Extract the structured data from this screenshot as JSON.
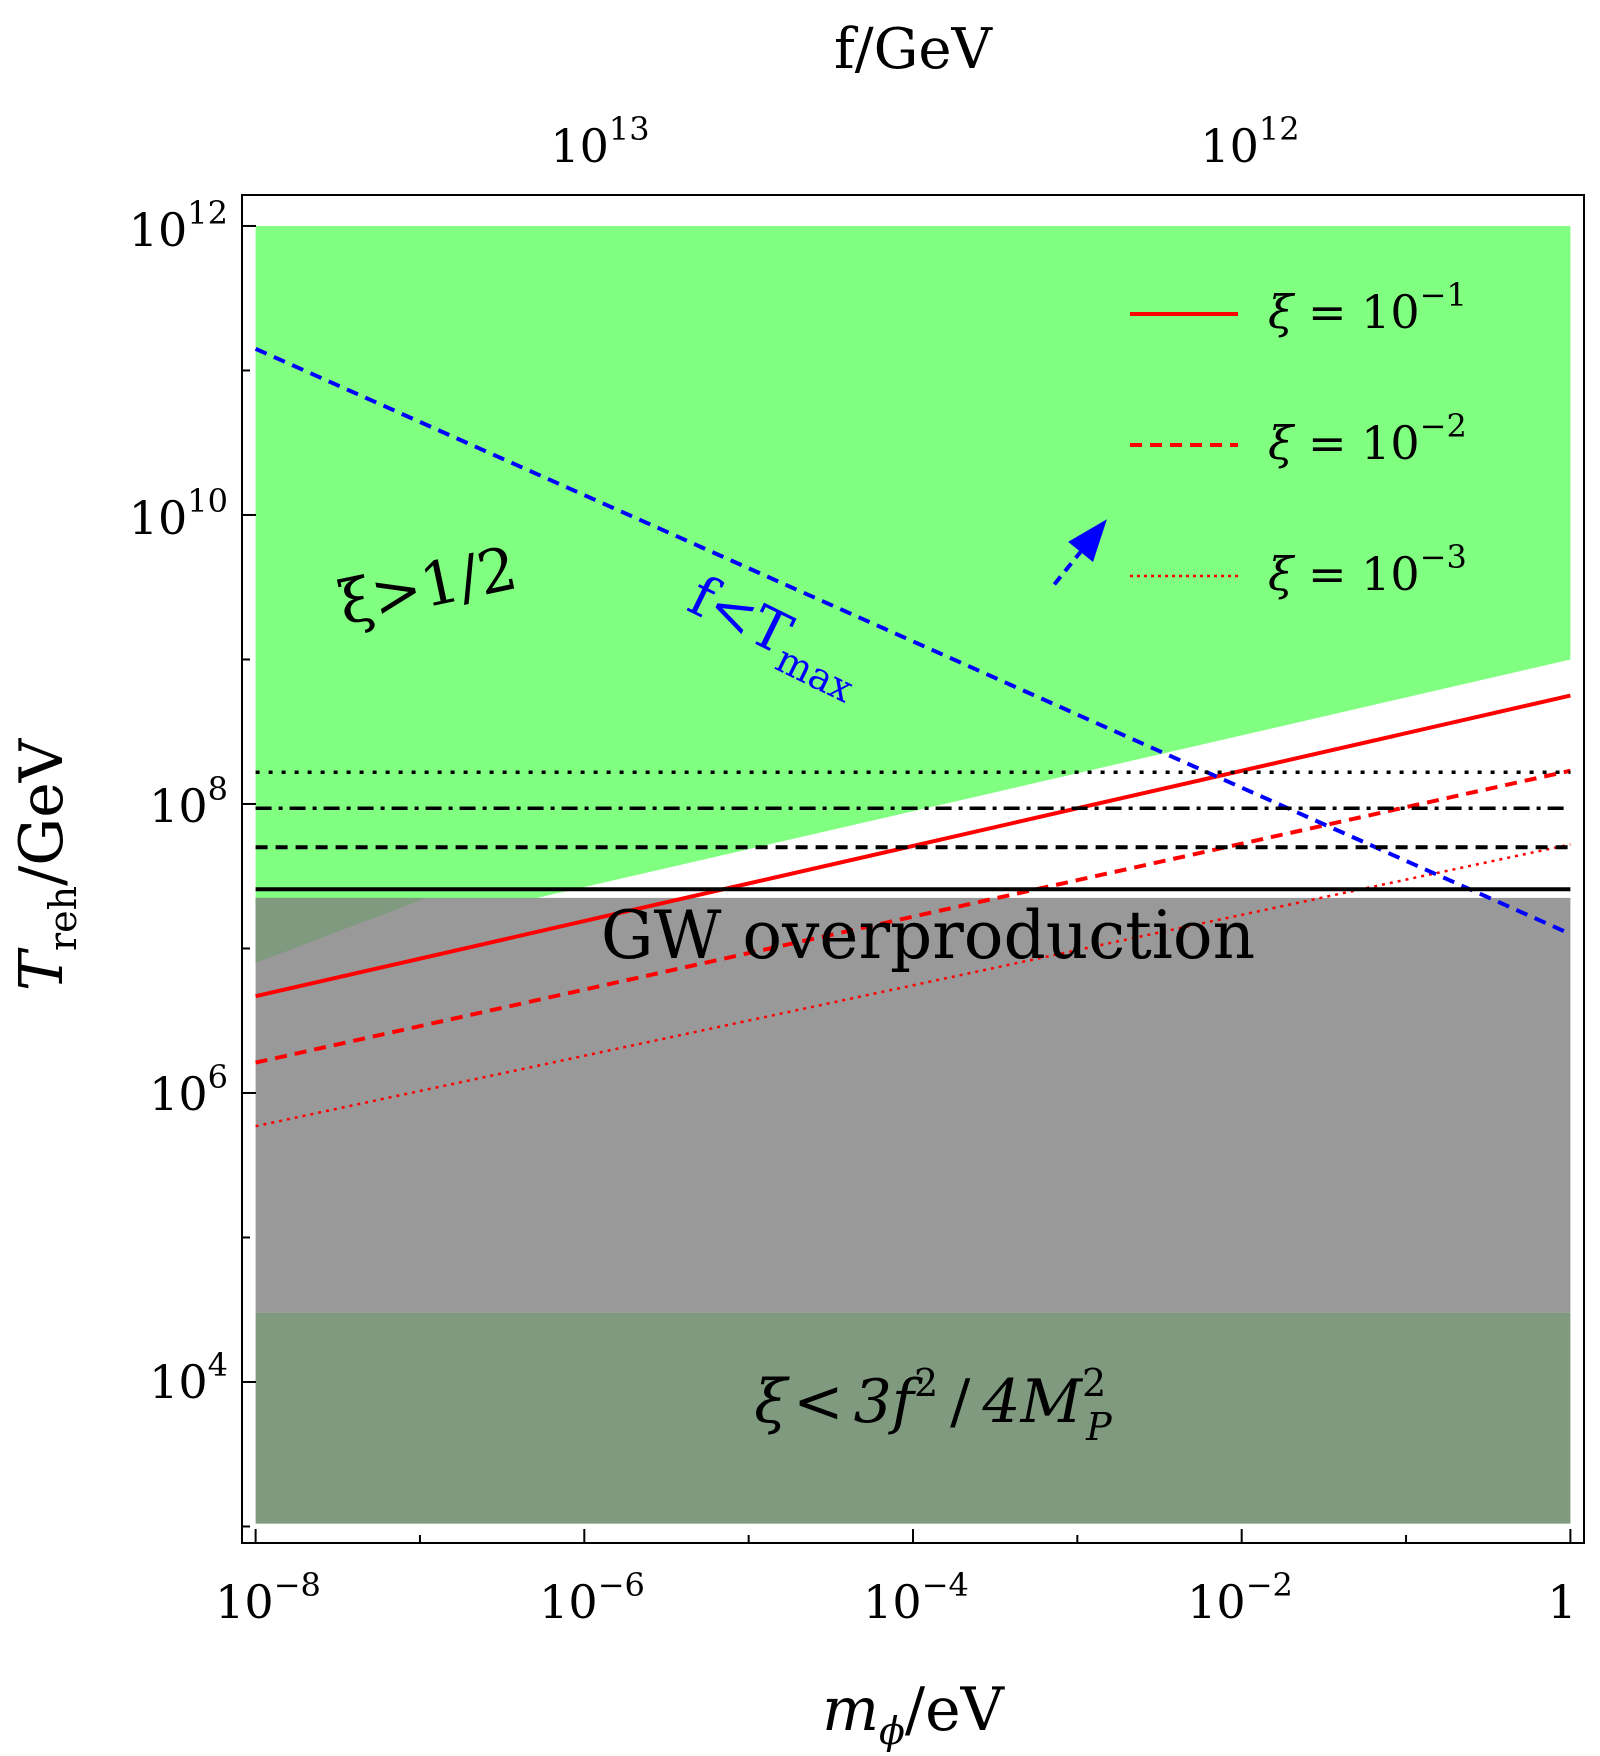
{
  "chart_data": {
    "type": "line",
    "x_axis": {
      "label_main": "m",
      "label_sub": "ϕ",
      "label_tail": "/eV",
      "scale": "log10",
      "range_log": [
        -8.0828,
        0.0828
      ],
      "ticks": [
        {
          "value_log": -8,
          "base": "10",
          "exp": "−8"
        },
        {
          "value_log": -6,
          "base": "10",
          "exp": "−6"
        },
        {
          "value_log": -4,
          "base": "10",
          "exp": "−4"
        },
        {
          "value_log": -2,
          "base": "10",
          "exp": "−2"
        },
        {
          "value_log": 0,
          "base": "1",
          "exp": ""
        }
      ]
    },
    "y_axis": {
      "label_main": "T",
      "label_sub": "reh",
      "label_tail": "/GeV",
      "scale": "log10",
      "range_log": [
        2.8857,
        12.2143
      ],
      "ticks": [
        {
          "value_log": 4,
          "base": "10",
          "exp": "4"
        },
        {
          "value_log": 6,
          "base": "10",
          "exp": "6"
        },
        {
          "value_log": 8,
          "base": "10",
          "exp": "8"
        },
        {
          "value_log": 10,
          "base": "10",
          "exp": "10"
        },
        {
          "value_log": 12,
          "base": "10",
          "exp": "12"
        }
      ]
    },
    "top_axis": {
      "label": "f/GeV",
      "ticks": [
        {
          "at_x_log": -6,
          "base": "10",
          "exp": "13"
        },
        {
          "at_x_log": -2,
          "base": "10",
          "exp": "12"
        }
      ]
    },
    "regions": [
      {
        "name": "xi-gt-half",
        "color": "#80ff80",
        "polygon_log": [
          [
            -8,
            12.0
          ],
          [
            0,
            12.0
          ],
          [
            0,
            9.0
          ],
          [
            -8,
            6.9
          ]
        ]
      },
      {
        "name": "gw-overproduction",
        "color": "#999999",
        "polygon_log": [
          [
            -8,
            7.35
          ],
          [
            0,
            7.35
          ],
          [
            0,
            4.48
          ],
          [
            -8,
            4.48
          ]
        ]
      },
      {
        "name": "overlap",
        "color": "#7f9a7f",
        "polygon_log": [
          [
            -8,
            6.9
          ],
          [
            -6.96,
            7.35
          ],
          [
            -8,
            7.35
          ]
        ]
      },
      {
        "name": "xi-lt-3f2",
        "color": "#7f9a7f",
        "polygon_log": [
          [
            -8,
            4.48
          ],
          [
            0,
            4.48
          ],
          [
            0,
            3.02
          ],
          [
            -8,
            3.02
          ]
        ]
      }
    ],
    "series": [
      {
        "name": "ξ = 10^-1",
        "color": "#ff0000",
        "dash": "solid",
        "width": 4,
        "x_log": [
          -8,
          0
        ],
        "y_log": [
          6.67,
          8.75
        ]
      },
      {
        "name": "ξ = 10^-2",
        "color": "#ff0000",
        "dash": "dashed",
        "width": 4,
        "x_log": [
          -8,
          0
        ],
        "y_log": [
          6.21,
          8.23
        ]
      },
      {
        "name": "ξ = 10^-3",
        "color": "#ff0000",
        "dash": "dotted",
        "width": 2.5,
        "x_log": [
          -8,
          0
        ],
        "y_log": [
          5.77,
          7.72
        ]
      },
      {
        "name": "f < T_max",
        "color": "#0000ff",
        "dash": "dashed",
        "width": 4,
        "x_log": [
          -8,
          0
        ],
        "y_log": [
          11.15,
          7.1
        ]
      },
      {
        "name": "black-solid",
        "color": "#000000",
        "dash": "solid",
        "width": 4,
        "x_log": [
          -8,
          0
        ],
        "y_log": [
          7.41,
          7.41
        ]
      },
      {
        "name": "black-dashed",
        "color": "#000000",
        "dash": "dashed",
        "width": 4,
        "x_log": [
          -8,
          0
        ],
        "y_log": [
          7.7,
          7.7
        ]
      },
      {
        "name": "black-dashdot",
        "color": "#000000",
        "dash": "dashdot",
        "width": 3.5,
        "x_log": [
          -8,
          0
        ],
        "y_log": [
          7.97,
          7.97
        ]
      },
      {
        "name": "black-dotted",
        "color": "#000000",
        "dash": "dotted",
        "width": 3.5,
        "x_log": [
          -8,
          0
        ],
        "y_log": [
          8.22,
          8.22
        ]
      }
    ],
    "arrow": {
      "color": "#0000ff",
      "from_log": [
        -3.14,
        9.52
      ],
      "to_log": [
        -2.82,
        9.97
      ]
    },
    "legend": {
      "placement": "top-right",
      "entries": [
        {
          "label_prefix": "ξ = ",
          "base": "10",
          "exp": "−1",
          "color": "#ff0000",
          "dash": "solid"
        },
        {
          "label_prefix": "ξ = ",
          "base": "10",
          "exp": "−2",
          "color": "#ff0000",
          "dash": "dashed"
        },
        {
          "label_prefix": "ξ = ",
          "base": "10",
          "exp": "−3",
          "color": "#ff0000",
          "dash": "dotted"
        }
      ]
    },
    "annotations": {
      "xi_gt_half": "ξ>1/2",
      "f_tmax_main": "f<T",
      "f_tmax_sub": "max",
      "gw": "GW overproduction",
      "xi_lt": {
        "xi": "ξ",
        "lt": "<",
        "num": "3f",
        "sup1": "2",
        "slash": "/",
        "den": "4M",
        "sup2": "2",
        "sub2": "P"
      }
    }
  }
}
